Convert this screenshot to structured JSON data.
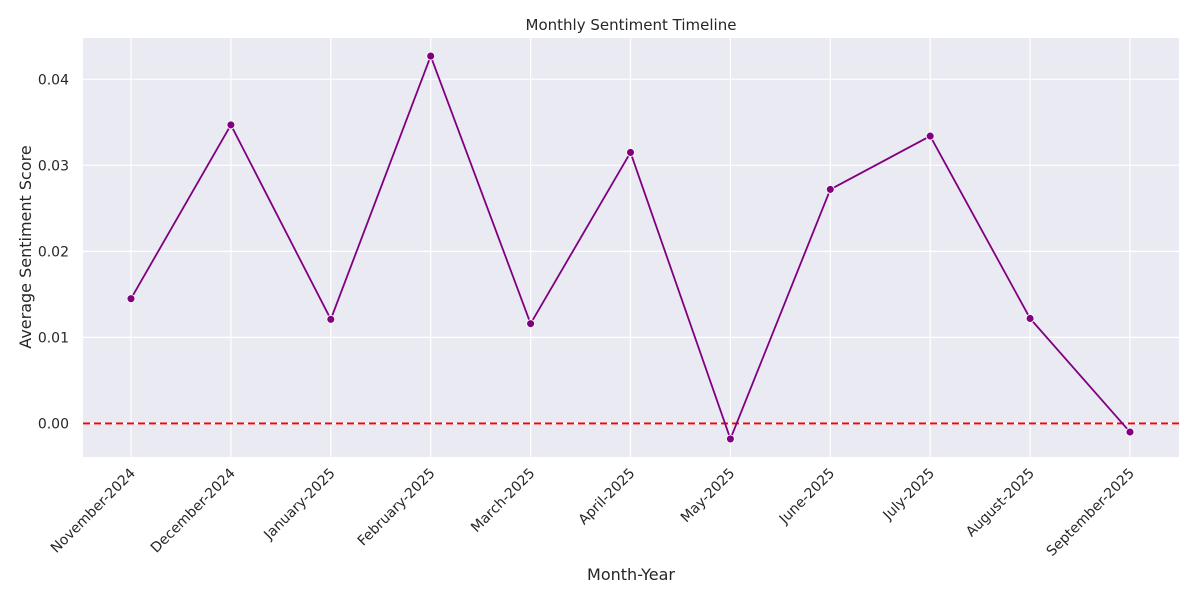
{
  "chart_data": {
    "type": "line",
    "title": "Monthly Sentiment Timeline",
    "xlabel": "Month-Year",
    "ylabel": "Average Sentiment Score",
    "categories": [
      "November-2024",
      "December-2024",
      "January-2025",
      "February-2025",
      "March-2025",
      "April-2025",
      "May-2025",
      "June-2025",
      "July-2025",
      "August-2025",
      "September-2025"
    ],
    "series": [
      {
        "values": [
          0.0145,
          0.0347,
          0.0121,
          0.0427,
          0.0116,
          0.0315,
          -0.0018,
          0.0272,
          0.0334,
          0.0122,
          -0.001
        ],
        "color": "#800080",
        "marker": "circle"
      }
    ],
    "ylim": [
      -0.0039,
      0.0448
    ],
    "yticks": [
      0.0,
      0.01,
      0.02,
      0.03,
      0.04
    ],
    "ytick_labels": [
      "0.00",
      "0.01",
      "0.02",
      "0.03",
      "0.04"
    ],
    "reference_line": {
      "value": 0.0,
      "color": "#ff0000",
      "style": "dashed"
    },
    "grid": true,
    "background_color": "#eaeaf2",
    "grid_color": "#ffffff",
    "text_color": "#262626"
  }
}
